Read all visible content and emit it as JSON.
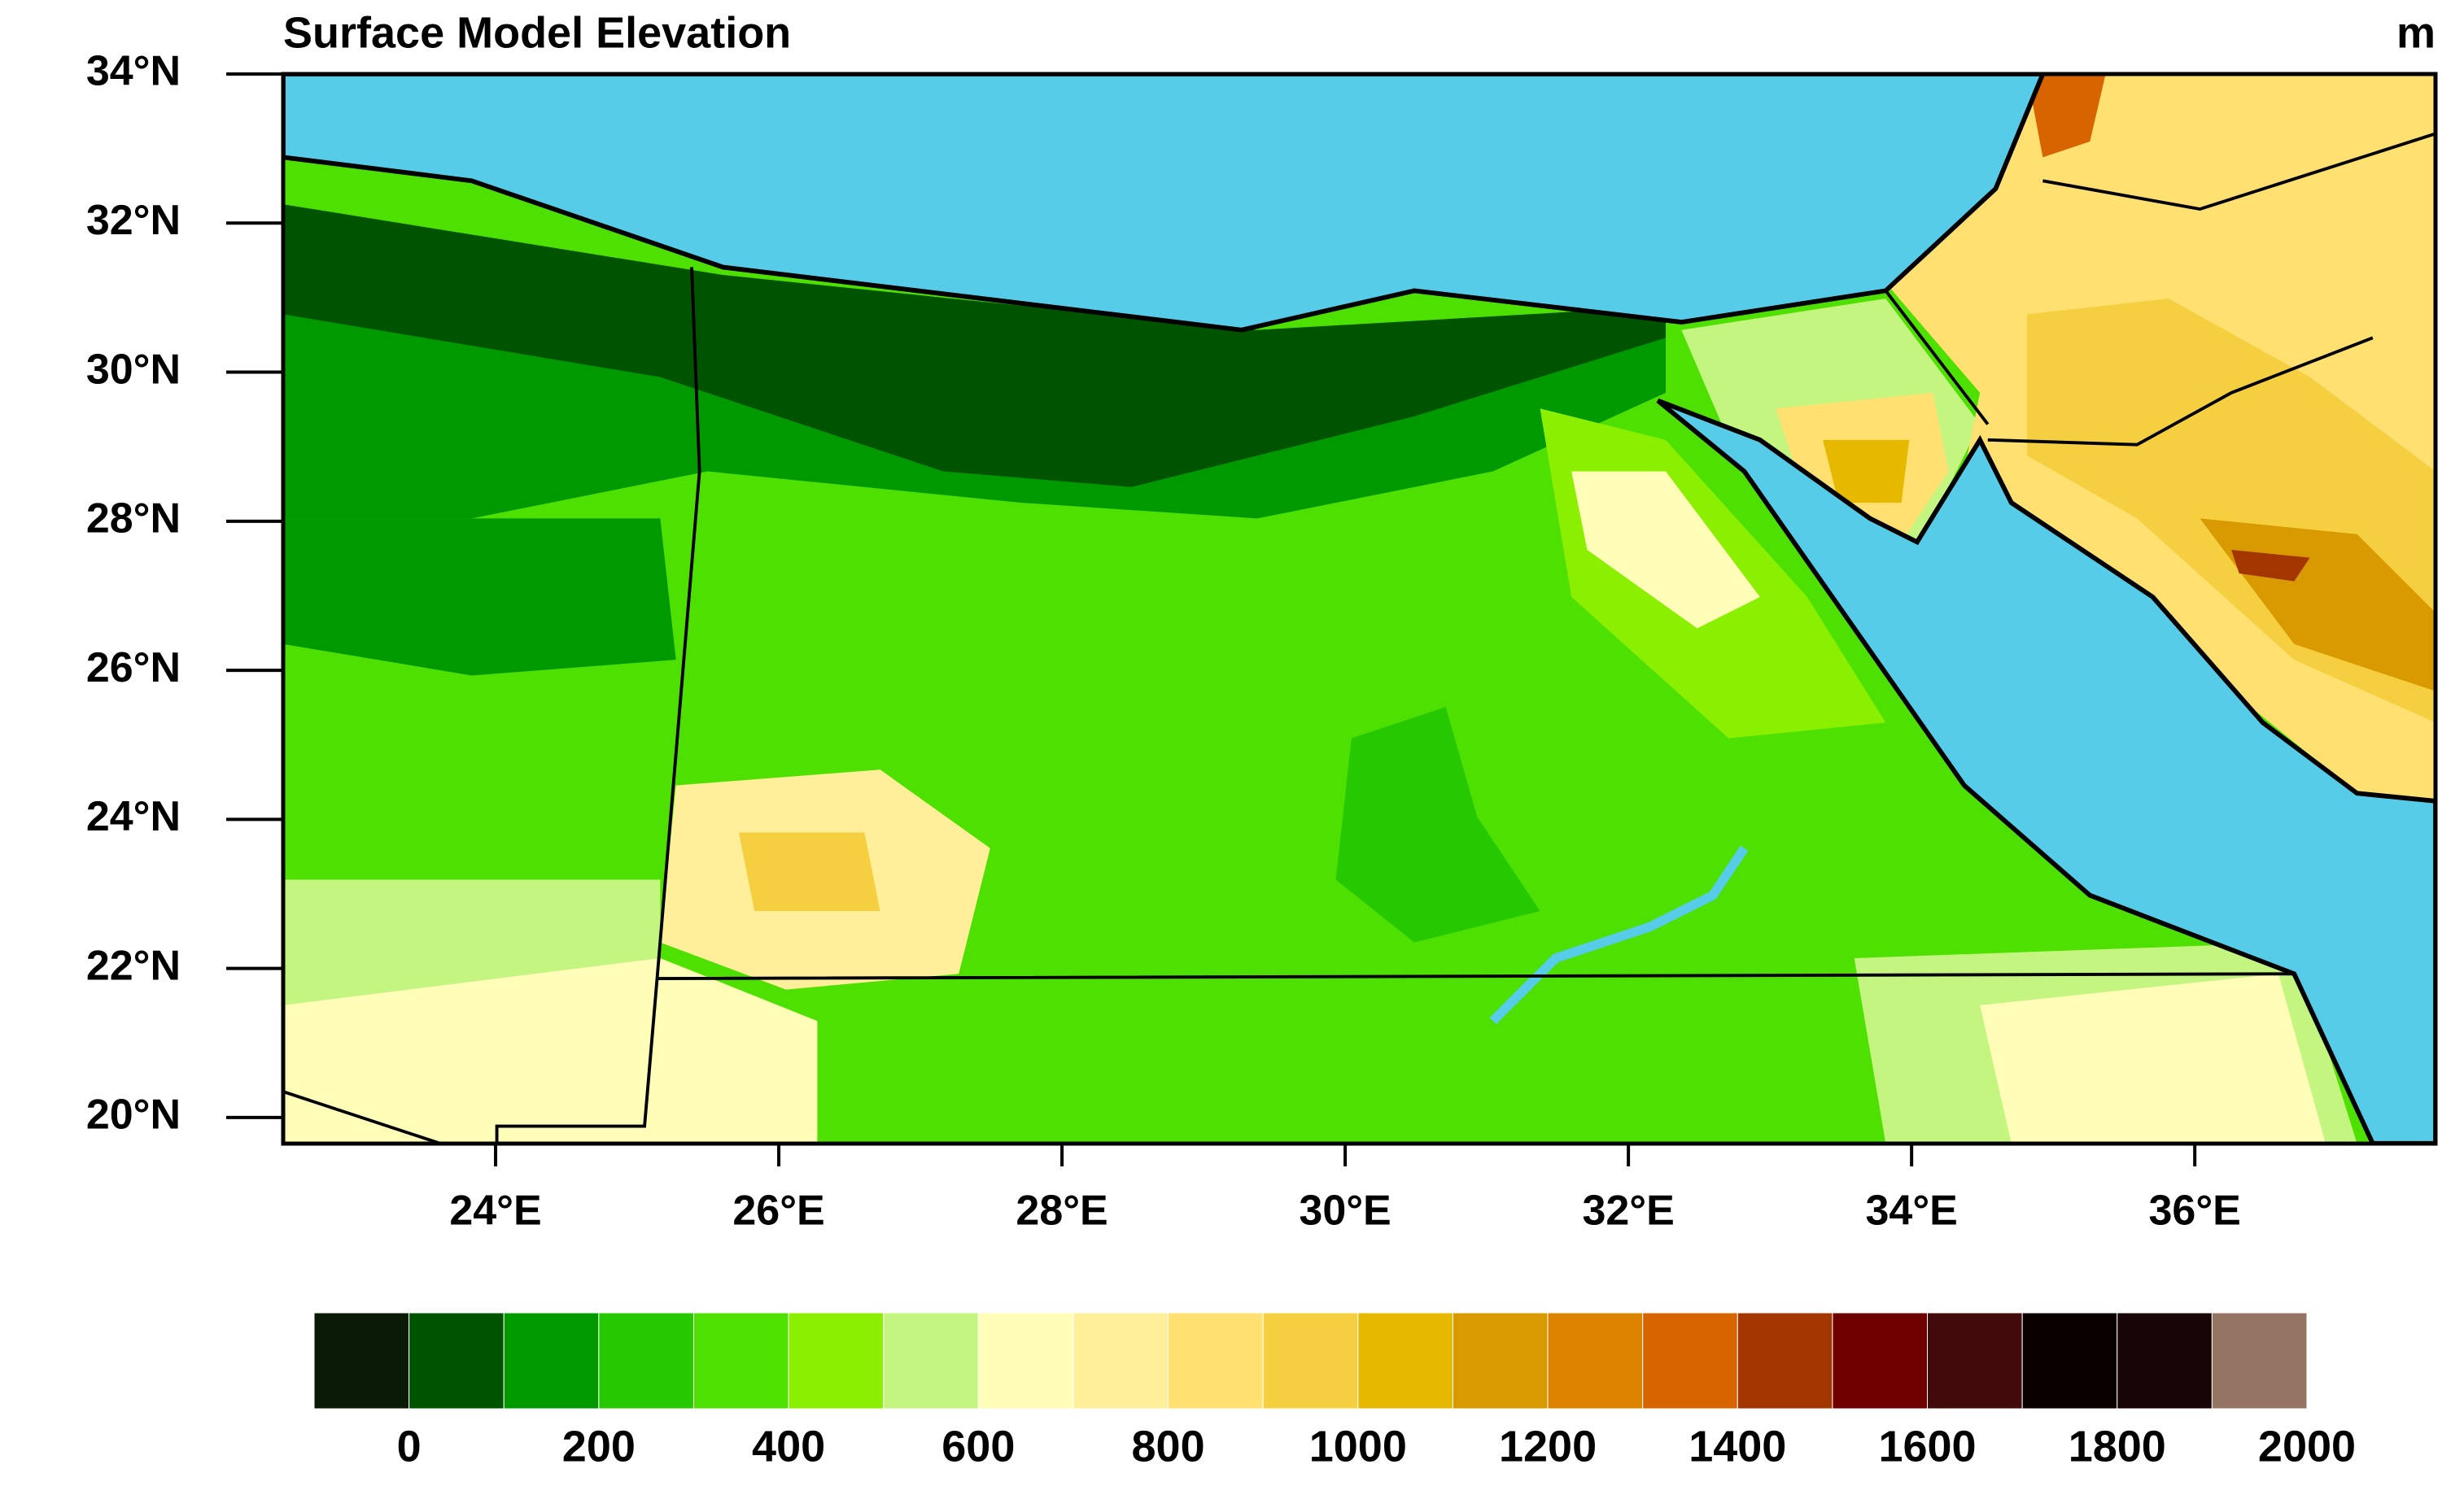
{
  "title": "Surface Model Elevation",
  "units": "m",
  "map": {
    "xlim": [
      22.5,
      37.7
    ],
    "ylim": [
      19.65,
      34
    ],
    "xticks": [
      {
        "value": 24,
        "label": "24°E"
      },
      {
        "value": 26,
        "label": "26°E"
      },
      {
        "value": 28,
        "label": "28°E"
      },
      {
        "value": 30,
        "label": "30°E"
      },
      {
        "value": 32,
        "label": "32°E"
      },
      {
        "value": 34,
        "label": "34°E"
      },
      {
        "value": 36,
        "label": "36°E"
      }
    ],
    "yticks": [
      {
        "value": 20,
        "label": "20°N"
      },
      {
        "value": 22,
        "label": "22°N"
      },
      {
        "value": 24,
        "label": "24°N"
      },
      {
        "value": 26,
        "label": "26°N"
      },
      {
        "value": 28,
        "label": "28°N"
      },
      {
        "value": 30,
        "label": "30°N"
      },
      {
        "value": 32,
        "label": "32°N"
      },
      {
        "value": 34,
        "label": "34°N"
      }
    ]
  },
  "colorbar": {
    "range": [
      -100,
      2000
    ],
    "colors": [
      "#0a1a05",
      "#005400",
      "#009a00",
      "#26c800",
      "#4ee000",
      "#8af000",
      "#c4f580",
      "#fffdb8",
      "#ffef9a",
      "#ffe070",
      "#f5cf40",
      "#e6b800",
      "#d89a00",
      "#dd8300",
      "#d86400",
      "#a33600",
      "#700000",
      "#420a0a",
      "#0a0000",
      "#180505",
      "#947563"
    ],
    "ticks": [
      0,
      200,
      400,
      600,
      800,
      1000,
      1200,
      1400,
      1600,
      1800,
      2000
    ]
  }
}
